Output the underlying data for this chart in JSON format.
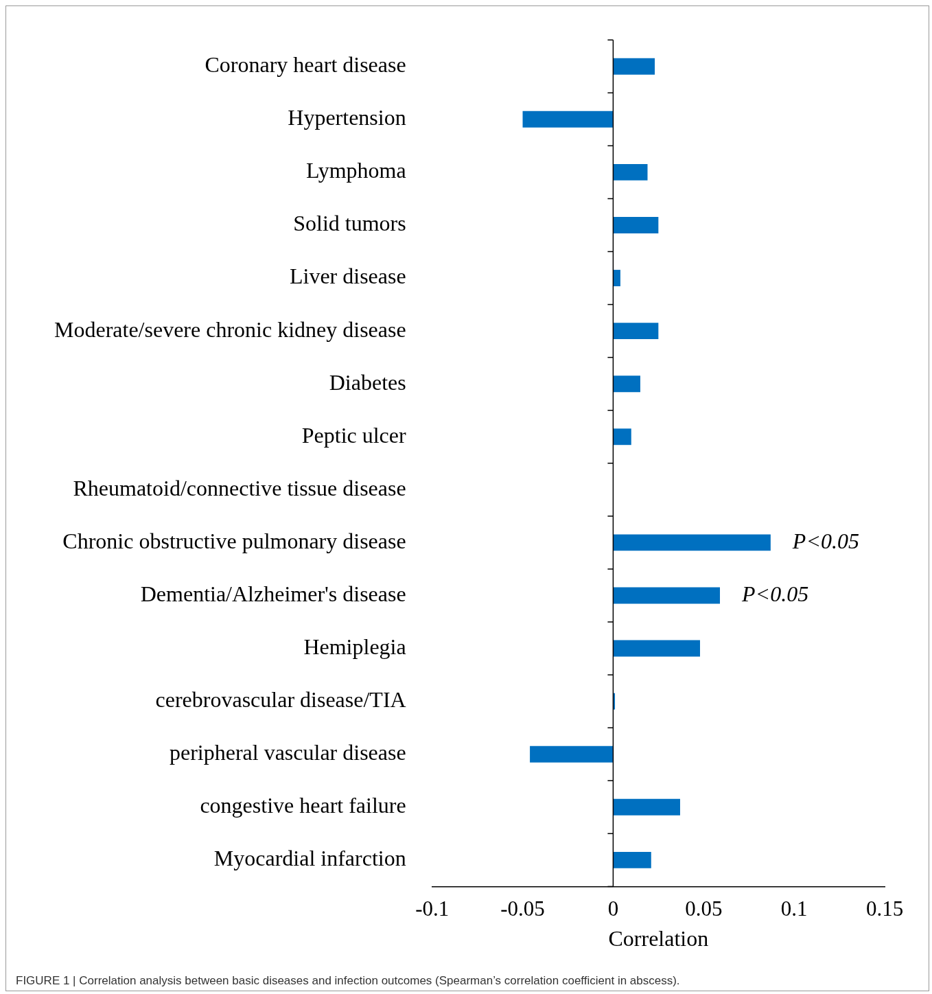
{
  "chart_data": {
    "type": "bar",
    "orientation": "horizontal",
    "categories": [
      "Coronary heart disease",
      "Hypertension",
      "Lymphoma",
      "Solid tumors",
      "Liver disease",
      "Moderate/severe chronic kidney disease",
      "Diabetes",
      "Peptic ulcer",
      "Rheumatoid/connective tissue disease",
      "Chronic obstructive pulmonary disease",
      "Dementia/Alzheimer's disease",
      "Hemiplegia",
      "cerebrovascular disease/TIA",
      "peripheral vascular disease",
      "congestive heart failure",
      "Myocardial infarction"
    ],
    "values": [
      0.023,
      -0.05,
      0.019,
      0.025,
      0.004,
      0.025,
      0.015,
      0.01,
      0,
      0.087,
      0.059,
      0.048,
      0.001,
      -0.046,
      0.037,
      0.021
    ],
    "color": "#0070c0",
    "xlim": [
      -0.1,
      0.15
    ],
    "xticks": [
      -0.1,
      -0.05,
      0,
      0.05,
      0.1,
      0.15
    ],
    "xlabel": "Correlation",
    "annotations": [
      {
        "text": "P<0.05",
        "x": 0.087,
        "y": "Chronic obstructive pulmonary disease"
      },
      {
        "text": "P<0.05",
        "x": 0.059,
        "y": "Dementia/Alzheimer's disease"
      },
      "FIGURE 1 | Correlation analysis between basic diseases and infection outcomes (Spearman’s correlation coefficient in abscess)."
    ]
  }
}
